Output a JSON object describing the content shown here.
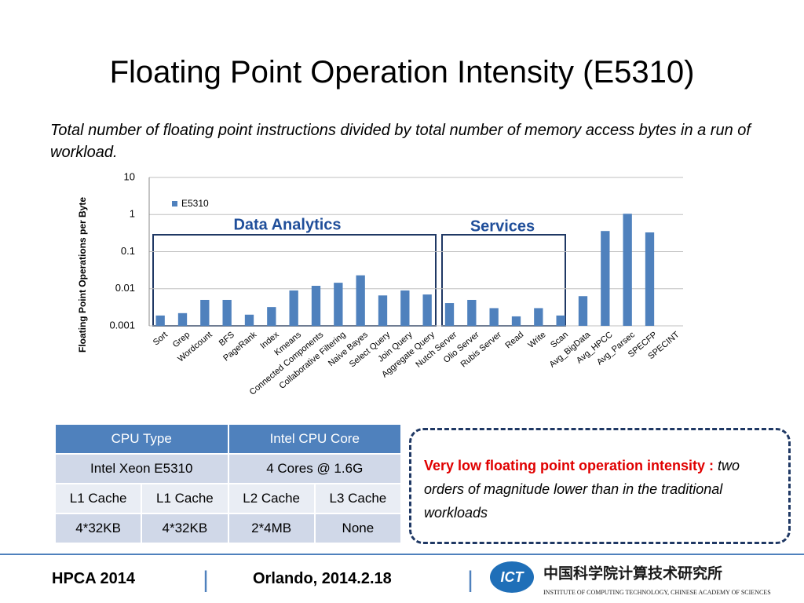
{
  "title": "Floating Point Operation Intensity (E5310)",
  "subtitle": "Total number of  floating point  instructions divided by total number of memory access bytes in a run of workload.",
  "chart_data": {
    "type": "bar",
    "y_label": "Floating Point Operations per Byte",
    "categories": [
      "Sort",
      "Grep",
      "Wordcount",
      "BFS",
      "PageRank",
      "Index",
      "Kmeans",
      "Connected Components",
      "Collaborative Filtering",
      "Naive Bayes",
      "Select Query",
      "Join Query",
      "Aggregate Query",
      "Nutch Server",
      "Olio Server",
      "Rubis Server",
      "Read",
      "Write",
      "Scan",
      "Avg_BigData",
      "Avg_HPCC",
      "Avg_Parsec",
      "SPECFP",
      "SPECINT"
    ],
    "series": [
      {
        "name": "E5310",
        "color": "#4f81bd",
        "values": [
          0.0019,
          0.0022,
          0.005,
          0.005,
          0.002,
          0.0032,
          0.009,
          0.012,
          0.0145,
          0.023,
          0.0066,
          0.009,
          0.007,
          0.0041,
          0.005,
          0.003,
          0.0018,
          0.003,
          0.0019,
          0.0063,
          0.36,
          1.05,
          0.33,
          null
        ]
      }
    ],
    "log_y": true,
    "ylim": [
      0.001,
      10
    ],
    "yticks": [
      0.001,
      0.01,
      0.1,
      1,
      10
    ],
    "grid": true,
    "annotations": [
      "Data Analytics",
      "Services"
    ]
  },
  "table": {
    "header": [
      "CPU Type",
      "Intel CPU Core"
    ],
    "rows": [
      [
        "Intel  Xeon E5310",
        "4 Cores @ 1.6G"
      ],
      [
        "L1 Cache",
        "L1 Cache",
        "L2 Cache",
        "L3 Cache"
      ],
      [
        "4*32KB",
        "4*32KB",
        "2*4MB",
        "None"
      ]
    ]
  },
  "note": {
    "highlight": "Very low floating point operation intensity :",
    "text": "two orders  of magnitude lower than in the traditional workloads"
  },
  "footer": {
    "conference": "HPCA  2014",
    "location": "Orlando, 2014.2.18",
    "logo": "ICT",
    "institute_cn": "中国科学院计算技术研究所",
    "institute_en": "INSTITUTE OF  COMPUTING TECHNOLOGY, CHINESE ACADEMY OF SCIENCES"
  }
}
